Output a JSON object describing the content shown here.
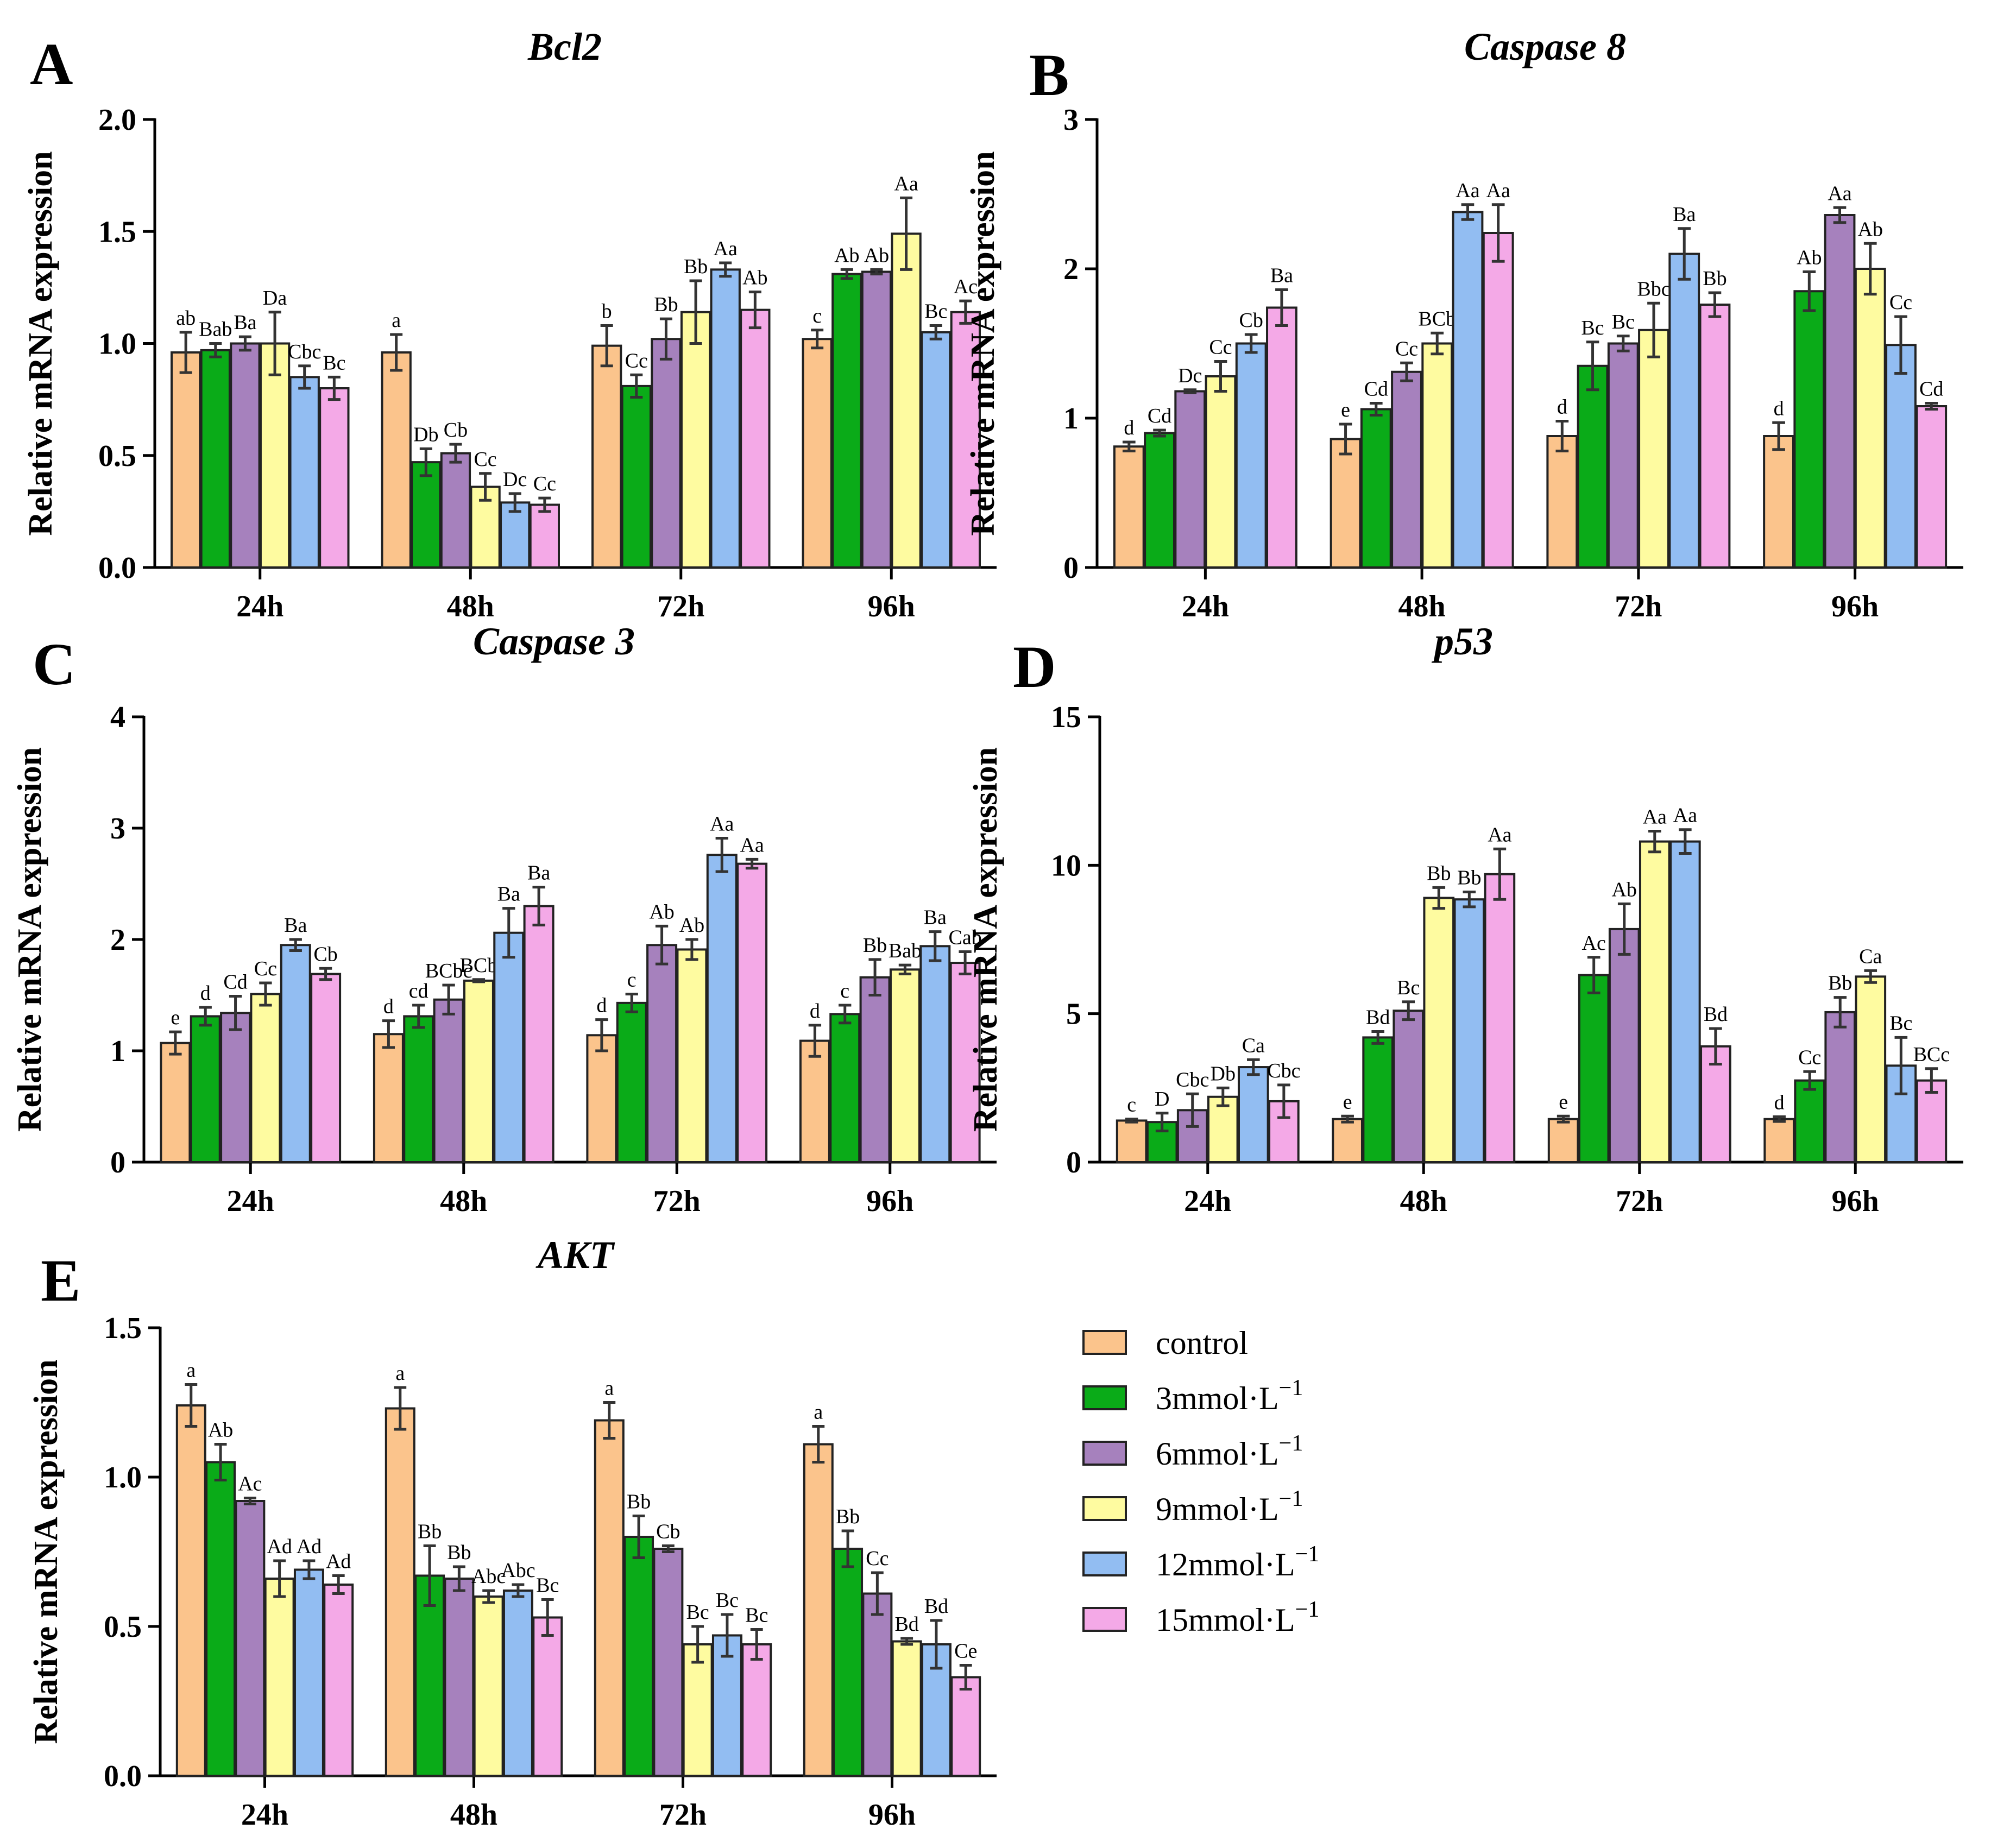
{
  "legend": {
    "items": [
      {
        "label": "control",
        "sup": "",
        "color": "#fbc48c"
      },
      {
        "label": "3mmol·L",
        "sup": "−1",
        "color": "#0aab18"
      },
      {
        "label": "6mmol·L",
        "sup": "−1",
        "color": "#a681bd"
      },
      {
        "label": "9mmol·L",
        "sup": "−1",
        "color": "#fefba0"
      },
      {
        "label": "12mmol·L",
        "sup": "−1",
        "color": "#92bdf2"
      },
      {
        "label": "15mmol·L",
        "sup": "−1",
        "color": "#f4a9e7"
      }
    ]
  },
  "chart_data": [
    {
      "panel": "A",
      "title": "Bcl2",
      "type": "bar",
      "ylabel": "Relative mRNA expression",
      "ylim": [
        0,
        2.0
      ],
      "yticks": [
        "0.0",
        "0.5",
        "1.0",
        "1.5",
        "2.0"
      ],
      "categories": [
        "24h",
        "48h",
        "72h",
        "96h"
      ],
      "series": [
        {
          "name": "control",
          "values": [
            0.96,
            0.96,
            0.99,
            1.02
          ],
          "errors": [
            0.09,
            0.08,
            0.09,
            0.04
          ],
          "labels": [
            "ab",
            "a",
            "b",
            "c"
          ]
        },
        {
          "name": "3mmol·L−1",
          "values": [
            0.97,
            0.47,
            0.81,
            1.31
          ],
          "errors": [
            0.03,
            0.06,
            0.05,
            0.02
          ],
          "labels": [
            "Bab",
            "Db",
            "Cc",
            "Ab"
          ]
        },
        {
          "name": "6mmol·L−1",
          "values": [
            1.0,
            0.51,
            1.02,
            1.32
          ],
          "errors": [
            0.03,
            0.04,
            0.09,
            0.01
          ],
          "labels": [
            "Ba",
            "Cb",
            "Bb",
            "Ab"
          ]
        },
        {
          "name": "9mmol·L−1",
          "values": [
            1.0,
            0.36,
            1.14,
            1.49
          ],
          "errors": [
            0.14,
            0.06,
            0.14,
            0.16
          ],
          "labels": [
            "Da",
            "Cc",
            "Bb",
            "Aa"
          ]
        },
        {
          "name": "12mmol·L−1",
          "values": [
            0.85,
            0.29,
            1.33,
            1.05
          ],
          "errors": [
            0.05,
            0.04,
            0.03,
            0.03
          ],
          "labels": [
            "Cbc",
            "Dc",
            "Aa",
            "Bc"
          ]
        },
        {
          "name": "15mmol·L−1",
          "values": [
            0.8,
            0.28,
            1.15,
            1.14
          ],
          "errors": [
            0.05,
            0.03,
            0.08,
            0.05
          ],
          "labels": [
            "Bc",
            "Cc",
            "Ab",
            "Ac"
          ]
        }
      ]
    },
    {
      "panel": "B",
      "title": "Caspase 8",
      "type": "bar",
      "ylabel": "Relative mRNA expression",
      "ylim": [
        0,
        3
      ],
      "yticks": [
        "0",
        "1",
        "2",
        "3"
      ],
      "categories": [
        "24h",
        "48h",
        "72h",
        "96h"
      ],
      "series": [
        {
          "name": "control",
          "values": [
            0.81,
            0.86,
            0.88,
            0.88
          ],
          "errors": [
            0.03,
            0.1,
            0.1,
            0.09
          ],
          "labels": [
            "d",
            "e",
            "d",
            "d"
          ]
        },
        {
          "name": "3mmol·L−1",
          "values": [
            0.9,
            1.06,
            1.35,
            1.85
          ],
          "errors": [
            0.02,
            0.04,
            0.16,
            0.13
          ],
          "labels": [
            "Cd",
            "Cd",
            "Bc",
            "Ab"
          ]
        },
        {
          "name": "6mmol·L−1",
          "values": [
            1.18,
            1.31,
            1.5,
            2.36
          ],
          "errors": [
            0.01,
            0.06,
            0.05,
            0.05
          ],
          "labels": [
            "Dc",
            "Cc",
            "Bc",
            "Aa"
          ]
        },
        {
          "name": "9mmol·L−1",
          "values": [
            1.28,
            1.5,
            1.59,
            2.0
          ],
          "errors": [
            0.1,
            0.07,
            0.18,
            0.17
          ],
          "labels": [
            "Cc",
            "BCb",
            "Bbc",
            "Ab"
          ]
        },
        {
          "name": "12mmol·L−1",
          "values": [
            1.5,
            2.38,
            2.1,
            1.49
          ],
          "errors": [
            0.06,
            0.05,
            0.17,
            0.19
          ],
          "labels": [
            "Cb",
            "Aa",
            "Ba",
            "Cc"
          ]
        },
        {
          "name": "15mmol·L−1",
          "values": [
            1.74,
            2.24,
            1.76,
            1.08
          ],
          "errors": [
            0.12,
            0.19,
            0.08,
            0.02
          ],
          "labels": [
            "Ba",
            "Aa",
            "Bb",
            "Cd"
          ]
        }
      ]
    },
    {
      "panel": "C",
      "title": "Caspase 3",
      "type": "bar",
      "ylabel": "Relative mRNA expression",
      "ylim": [
        0,
        4
      ],
      "yticks": [
        "0",
        "1",
        "2",
        "3",
        "4"
      ],
      "categories": [
        "24h",
        "48h",
        "72h",
        "96h"
      ],
      "series": [
        {
          "name": "control",
          "values": [
            1.07,
            1.15,
            1.14,
            1.09
          ],
          "errors": [
            0.1,
            0.12,
            0.14,
            0.14
          ],
          "labels": [
            "e",
            "d",
            "d",
            "d"
          ]
        },
        {
          "name": "3mmol·L−1",
          "values": [
            1.31,
            1.31,
            1.43,
            1.33
          ],
          "errors": [
            0.08,
            0.1,
            0.08,
            0.08
          ],
          "labels": [
            "d",
            "cd",
            "c",
            "c"
          ]
        },
        {
          "name": "6mmol·L−1",
          "values": [
            1.34,
            1.46,
            1.95,
            1.66
          ],
          "errors": [
            0.15,
            0.13,
            0.17,
            0.16
          ],
          "labels": [
            "Cd",
            "BCbc",
            "Ab",
            "Bb"
          ]
        },
        {
          "name": "9mmol·L−1",
          "values": [
            1.51,
            1.63,
            1.91,
            1.73
          ],
          "errors": [
            0.1,
            0.01,
            0.09,
            0.04
          ],
          "labels": [
            "Cc",
            "BCb",
            "Ab",
            "Bab"
          ]
        },
        {
          "name": "12mmol·L−1",
          "values": [
            1.95,
            2.06,
            2.76,
            1.94
          ],
          "errors": [
            0.05,
            0.22,
            0.15,
            0.13
          ],
          "labels": [
            "Ba",
            "Ba",
            "Aa",
            "Ba"
          ]
        },
        {
          "name": "15mmol·L−1",
          "values": [
            1.69,
            2.3,
            2.68,
            1.79
          ],
          "errors": [
            0.05,
            0.17,
            0.04,
            0.1
          ],
          "labels": [
            "Cb",
            "Ba",
            "Aa",
            "Cab"
          ]
        }
      ]
    },
    {
      "panel": "D",
      "title": "p53",
      "type": "bar",
      "ylabel": "Relative mRNA expression",
      "ylim": [
        0,
        15
      ],
      "yticks": [
        "0",
        "5",
        "10",
        "15"
      ],
      "categories": [
        "24h",
        "48h",
        "72h",
        "96h"
      ],
      "series": [
        {
          "name": "control",
          "values": [
            1.4,
            1.45,
            1.45,
            1.45
          ],
          "errors": [
            0.05,
            0.1,
            0.1,
            0.08
          ],
          "labels": [
            "c",
            "e",
            "e",
            "d"
          ]
        },
        {
          "name": "3mmol·L−1",
          "values": [
            1.35,
            4.2,
            6.3,
            2.75
          ],
          "errors": [
            0.3,
            0.2,
            0.6,
            0.3
          ],
          "labels": [
            "D",
            "Bd",
            "Ac",
            "Cc"
          ]
        },
        {
          "name": "6mmol·L−1",
          "values": [
            1.75,
            5.1,
            7.85,
            5.05
          ],
          "errors": [
            0.55,
            0.3,
            0.85,
            0.5
          ],
          "labels": [
            "Cbc",
            "Bc",
            "Ab",
            "Bb"
          ]
        },
        {
          "name": "9mmol·L−1",
          "values": [
            2.2,
            8.9,
            10.8,
            6.25
          ],
          "errors": [
            0.3,
            0.35,
            0.35,
            0.2
          ],
          "labels": [
            "Db",
            "Bb",
            "Aa",
            "Ca"
          ]
        },
        {
          "name": "12mmol·L−1",
          "values": [
            3.2,
            8.85,
            10.8,
            3.25
          ],
          "errors": [
            0.25,
            0.25,
            0.4,
            0.95
          ],
          "labels": [
            "Ca",
            "Bb",
            "Aa",
            "Bc"
          ]
        },
        {
          "name": "15mmol·L−1",
          "values": [
            2.05,
            9.7,
            3.9,
            2.75
          ],
          "errors": [
            0.55,
            0.85,
            0.6,
            0.4
          ],
          "labels": [
            "Cbc",
            "Aa",
            "Bd",
            "BCc"
          ]
        }
      ]
    },
    {
      "panel": "E",
      "title": "AKT",
      "type": "bar",
      "ylabel": "Relative mRNA expression",
      "ylim": [
        0,
        1.5
      ],
      "yticks": [
        "0.0",
        "0.5",
        "1.0",
        "1.5"
      ],
      "categories": [
        "24h",
        "48h",
        "72h",
        "96h"
      ],
      "series": [
        {
          "name": "control",
          "values": [
            1.24,
            1.23,
            1.19,
            1.11
          ],
          "errors": [
            0.07,
            0.07,
            0.06,
            0.06
          ],
          "labels": [
            "a",
            "a",
            "a",
            "a"
          ]
        },
        {
          "name": "3mmol·L−1",
          "values": [
            1.05,
            0.67,
            0.8,
            0.76
          ],
          "errors": [
            0.06,
            0.1,
            0.07,
            0.06
          ],
          "labels": [
            "Ab",
            "Bb",
            "Bb",
            "Bb"
          ]
        },
        {
          "name": "6mmol·L−1",
          "values": [
            0.92,
            0.66,
            0.76,
            0.61
          ],
          "errors": [
            0.01,
            0.04,
            0.01,
            0.07
          ],
          "labels": [
            "Ac",
            "Bb",
            "Cb",
            "Cc"
          ]
        },
        {
          "name": "9mmol·L−1",
          "values": [
            0.66,
            0.6,
            0.44,
            0.45
          ],
          "errors": [
            0.06,
            0.02,
            0.06,
            0.01
          ],
          "labels": [
            "Ad",
            "Abc",
            "Bc",
            "Bd"
          ]
        },
        {
          "name": "12mmol·L−1",
          "values": [
            0.69,
            0.62,
            0.47,
            0.44
          ],
          "errors": [
            0.03,
            0.02,
            0.07,
            0.08
          ],
          "labels": [
            "Ad",
            "Abc",
            "Bc",
            "Bd"
          ]
        },
        {
          "name": "15mmol·L−1",
          "values": [
            0.64,
            0.53,
            0.44,
            0.33
          ],
          "errors": [
            0.03,
            0.06,
            0.05,
            0.04
          ],
          "labels": [
            "Ad",
            "Bc",
            "Bc",
            "Ce"
          ]
        }
      ]
    }
  ]
}
